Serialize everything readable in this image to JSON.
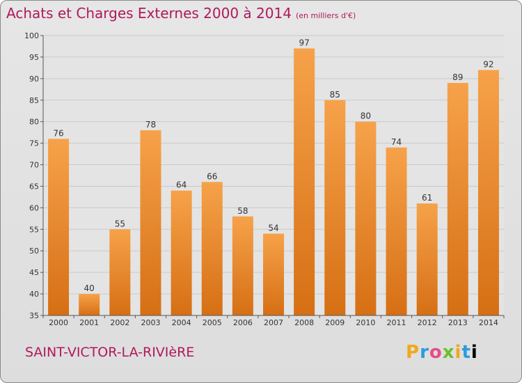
{
  "title": "Achats et Charges Externes 2000 à 2014",
  "subtitle": "(en milliers d'€)",
  "commune": "SAINT-VICTOR-LA-RIVIèRE",
  "logo": [
    "P",
    "r",
    "o",
    "x",
    "i",
    "t",
    "i"
  ],
  "colors": {
    "bar": "#f39a3c",
    "bar_dark": "#d9741a",
    "title": "#b0185c"
  },
  "chart_data": {
    "type": "bar",
    "title": "Achats et Charges Externes 2000 à 2014",
    "subtitle": "(en milliers d'€)",
    "categories": [
      "2000",
      "2001",
      "2002",
      "2003",
      "2004",
      "2005",
      "2006",
      "2007",
      "2008",
      "2009",
      "2010",
      "2011",
      "2012",
      "2013",
      "2014"
    ],
    "values": [
      76,
      40,
      55,
      78,
      64,
      66,
      58,
      54,
      97,
      85,
      80,
      74,
      61,
      89,
      92
    ],
    "ylim": [
      35,
      100
    ],
    "yticks": [
      35,
      40,
      45,
      50,
      55,
      60,
      65,
      70,
      75,
      80,
      85,
      90,
      95,
      100
    ],
    "grid": true,
    "data_labels": true
  }
}
